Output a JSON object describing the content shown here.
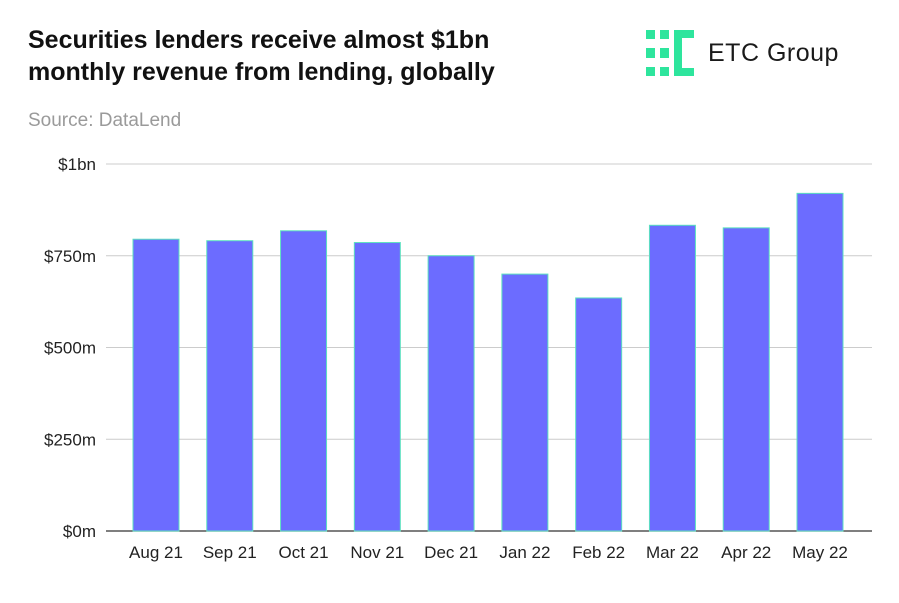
{
  "title": "Securities lenders receive almost $1bn monthly revenue from lending, globally",
  "source": "Source: DataLend",
  "logo": {
    "text": "ETC Group",
    "icon": "etc-group-logo-mark",
    "color": "#2ee59d"
  },
  "colors": {
    "bar": "#6c6cff",
    "bar_edge": "#5be0c0",
    "grid": "#cccccc"
  },
  "chart_data": {
    "type": "bar",
    "title": "Securities lenders receive almost $1bn monthly revenue from lending, globally",
    "xlabel": "",
    "ylabel": "",
    "categories": [
      "Aug 21",
      "Sep 21",
      "Oct 21",
      "Nov 21",
      "Dec 21",
      "Jan 22",
      "Feb 22",
      "Mar 22",
      "Apr 22",
      "May 22"
    ],
    "values": [
      795,
      791,
      818,
      786,
      750,
      700,
      635,
      833,
      826,
      920
    ],
    "units": "$ millions",
    "ylim": [
      0,
      1000
    ],
    "yticks": [
      0,
      250,
      500,
      750,
      1000
    ],
    "ytick_labels": [
      "$0m",
      "$250m",
      "$500m",
      "$750m",
      "$1bn"
    ],
    "grid": true,
    "legend": "none"
  }
}
